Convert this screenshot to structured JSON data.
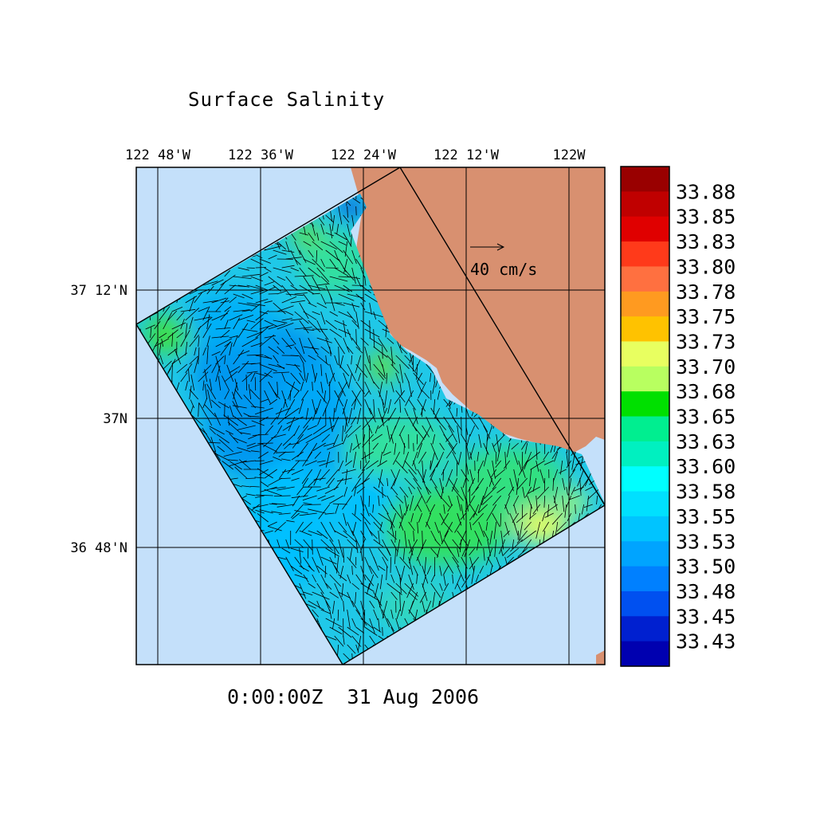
{
  "title": "Surface Salinity",
  "timestamp": "0:00:00Z  31 Aug 2006",
  "lon_labels": [
    "122 48'W",
    "122 36'W",
    "122 24'W",
    "122 12'W",
    "122W"
  ],
  "lat_labels": [
    "37 12'N",
    "37N",
    "36 48'N"
  ],
  "vector_scale_label": "40 cm/s",
  "colorbar": {
    "labels": [
      "33.88",
      "33.85",
      "33.83",
      "33.80",
      "33.78",
      "33.75",
      "33.73",
      "33.70",
      "33.68",
      "33.65",
      "33.63",
      "33.60",
      "33.58",
      "33.55",
      "33.53",
      "33.50",
      "33.48",
      "33.45",
      "33.43"
    ],
    "colors": [
      "#990000",
      "#c00000",
      "#e00000",
      "#ff3a1a",
      "#ff7040",
      "#ff9a20",
      "#ffc200",
      "#e8ff60",
      "#b8ff60",
      "#00e000",
      "#00ee90",
      "#00f0c0",
      "#00ffff",
      "#00e0ff",
      "#00c4ff",
      "#00a4ff",
      "#0080ff",
      "#0050f0",
      "#0020d0",
      "#0000b0"
    ]
  },
  "colors": {
    "ocean_outside": "#c4e0fa",
    "land": "#d89070",
    "domain_base": "#20c8e8"
  }
}
